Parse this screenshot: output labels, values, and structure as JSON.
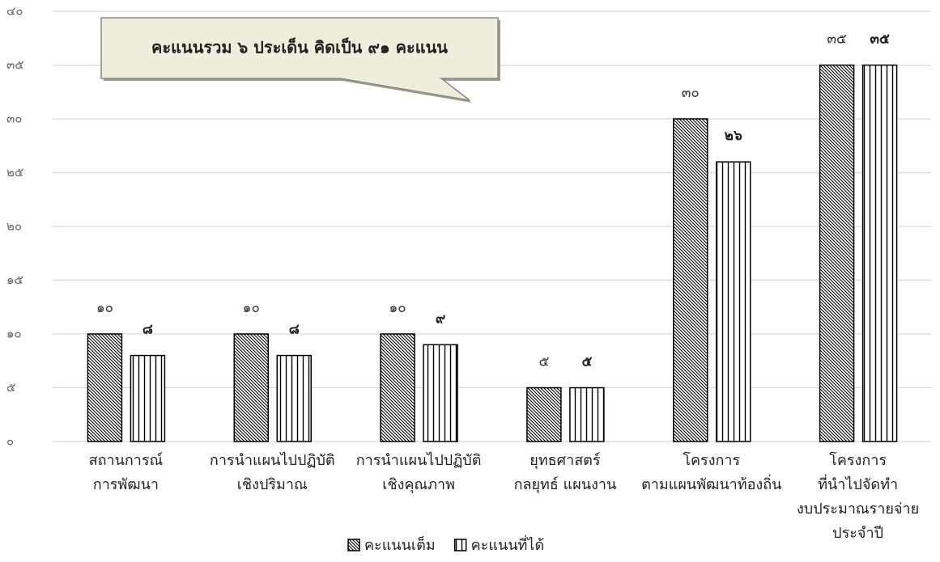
{
  "chart_data": {
    "type": "bar",
    "annotation": "คะแนนรวม ๖ ประเด็น คิดเป็น ๙๑ คะแนน",
    "categories": [
      [
        "สถานการณ์",
        "การพัฒนา"
      ],
      [
        "การนำแผนไปปฏิบัติ",
        "เชิงปริมาณ"
      ],
      [
        "การนำแผนไปปฏิบัติ",
        "เชิงคุณภาพ"
      ],
      [
        "ยุทธศาสตร์",
        "กลยุทธ์ แผนงาน"
      ],
      [
        "โครงการ",
        "ตามแผนพัฒนาท้องถิ่น"
      ],
      [
        "โครงการ",
        "ที่นำไปจัดทำ",
        "งบประมาณรายจ่าย",
        "ประจำปี"
      ]
    ],
    "series": [
      {
        "name": "คะแนนเต็ม",
        "color": "#000000",
        "pattern": "diagonal",
        "values": [
          10,
          10,
          10,
          5,
          30,
          35
        ],
        "value_labels": [
          "๑๐",
          "๑๐",
          "๑๐",
          "๕",
          "๓๐",
          "๓๕"
        ]
      },
      {
        "name": "คะแนนที่ได้",
        "color": "#000000",
        "pattern": "vertical",
        "values": [
          8,
          8,
          9,
          5,
          26,
          35
        ],
        "value_labels": [
          "๘",
          "๘",
          "๙",
          "๕",
          "๒๖",
          "๓๕"
        ]
      }
    ],
    "ylim": [
      0,
      40
    ],
    "yticks": [
      {
        "value": 0,
        "label": "๐"
      },
      {
        "value": 5,
        "label": "๕"
      },
      {
        "value": 10,
        "label": "๑๐"
      },
      {
        "value": 15,
        "label": "๑๕"
      },
      {
        "value": 20,
        "label": "๒๐"
      },
      {
        "value": 25,
        "label": "๒๕"
      },
      {
        "value": 30,
        "label": "๓๐"
      },
      {
        "value": 35,
        "label": "๓๕"
      },
      {
        "value": 40,
        "label": "๔๐"
      }
    ],
    "grid": true,
    "legend": "bottom"
  }
}
